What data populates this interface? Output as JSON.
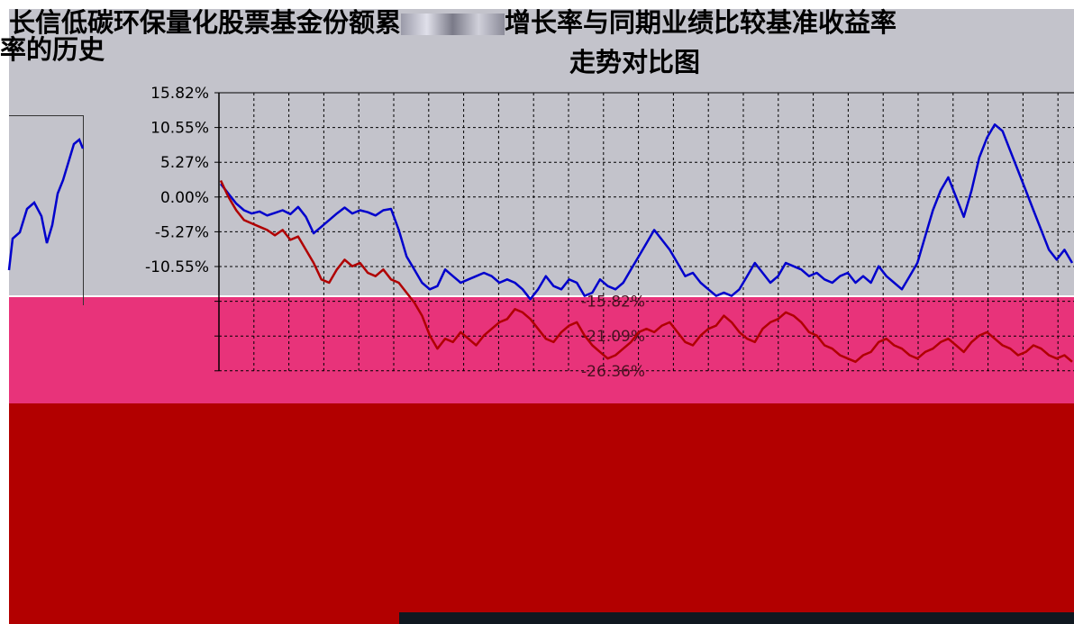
{
  "title": {
    "line1": "长信低碳环保量化股票基金份额累",
    "line1_tail": "增长率与同期业绩比较基准收益率",
    "left_line2": "率的历史",
    "line2": "走势对比图"
  },
  "colors": {
    "fund_line": "#0000cc",
    "benchmark_line": "#b00000",
    "plot_bg": "#c3c3cb",
    "grid": "#000000",
    "glitch_pink": "#e8337a",
    "glitch_red": "#b20000"
  },
  "chart_data": {
    "type": "line",
    "title": "长信低碳环保量化股票基金份额累计净值增长率与同期业绩比较基准收益率的历史走势对比图",
    "xlabel": "",
    "ylabel": "",
    "yticks": [
      "15.82%",
      "10.55%",
      "5.27%",
      "0.00%",
      "-5.27%",
      "-10.55%",
      "-15.82%",
      "-21.09%",
      "-26.36%"
    ],
    "ylim": [
      -26.36,
      15.82
    ],
    "grid": true,
    "series": [
      {
        "role": "fund",
        "values": [
          2.0,
          0.5,
          -1.0,
          -2.0,
          -2.5,
          -2.2,
          -2.8,
          -2.4,
          -2.0,
          -2.6,
          -1.5,
          -3.0,
          -5.5,
          -4.5,
          -3.5,
          -2.5,
          -1.6,
          -2.5,
          -2.0,
          -2.3,
          -2.8,
          -2.0,
          -1.8,
          -5.0,
          -9.0,
          -11.0,
          -13.0,
          -14.0,
          -13.5,
          -11.0,
          -12.0,
          -13.0,
          -12.5,
          -12.0,
          -11.5,
          -12.0,
          -13.0,
          -12.5,
          -13.0,
          -14.0,
          -15.5,
          -14.0,
          -12.0,
          -13.5,
          -14.0,
          -12.5,
          -13.0,
          -15.0,
          -14.5,
          -12.5,
          -13.5,
          -14.0,
          -13.0,
          -11.0,
          -9.0,
          -7.0,
          -5.0,
          -6.5,
          -8.0,
          -10.0,
          -12.0,
          -11.5,
          -13.0,
          -14.0,
          -15.0,
          -14.5,
          -15.0,
          -14.0,
          -12.0,
          -10.0,
          -11.5,
          -13.0,
          -12.0,
          -10.0,
          -10.5,
          -11.0,
          -12.0,
          -11.5,
          -12.5,
          -13.0,
          -12.0,
          -11.5,
          -13.0,
          -12.0,
          -13.0,
          -10.5,
          -12.0,
          -13.0,
          -14.0,
          -12.0,
          -10.0,
          -6.0,
          -2.0,
          1.0,
          3.0,
          0.0,
          -3.0,
          1.0,
          6.0,
          9.0,
          11.0,
          10.0,
          7.0,
          4.0,
          1.0,
          -2.0,
          -5.0,
          -8.0,
          -9.5,
          -8.0,
          -10.0
        ],
        "name": ""
      },
      {
        "role": "benchmark",
        "values": [
          2.5,
          0.0,
          -2.0,
          -3.5,
          -4.0,
          -4.5,
          -5.0,
          -5.8,
          -5.0,
          -6.5,
          -6.0,
          -8.0,
          -10.0,
          -12.5,
          -13.0,
          -11.0,
          -9.5,
          -10.5,
          -10.0,
          -11.5,
          -12.0,
          -11.0,
          -12.5,
          -13.0,
          -14.5,
          -16.0,
          -18.0,
          -21.0,
          -23.0,
          -21.5,
          -22.0,
          -20.5,
          -21.5,
          -22.5,
          -21.0,
          -20.0,
          -19.0,
          -18.5,
          -17.0,
          -17.5,
          -18.5,
          -20.0,
          -21.5,
          -22.0,
          -20.5,
          -19.5,
          -19.0,
          -21.0,
          -22.5,
          -23.5,
          -24.5,
          -24.0,
          -23.0,
          -22.0,
          -20.5,
          -20.0,
          -20.5,
          -19.5,
          -19.0,
          -20.5,
          -22.0,
          -22.5,
          -21.0,
          -20.0,
          -19.5,
          -18.0,
          -19.0,
          -20.5,
          -21.5,
          -22.0,
          -20.0,
          -19.0,
          -18.5,
          -17.5,
          -18.0,
          -19.0,
          -20.5,
          -21.0,
          -22.5,
          -23.0,
          -24.0,
          -24.5,
          -25.0,
          -24.0,
          -23.5,
          -22.0,
          -21.5,
          -22.5,
          -23.0,
          -24.0,
          -24.5,
          -23.5,
          -23.0,
          -22.0,
          -21.5,
          -22.5,
          -23.5,
          -22.0,
          -21.0,
          -20.5,
          -21.5,
          -22.5,
          -23.0,
          -24.0,
          -23.5,
          -22.5,
          -23.0,
          -24.0,
          -24.5,
          -24.0,
          -25.0
        ],
        "name": ""
      }
    ]
  }
}
